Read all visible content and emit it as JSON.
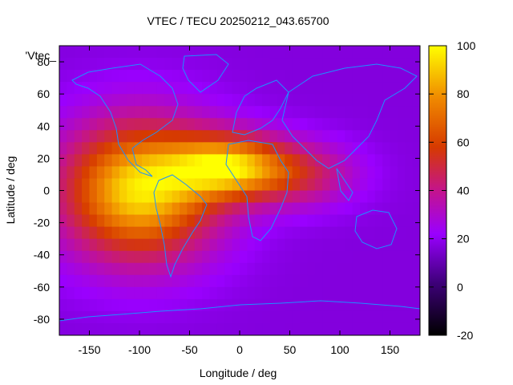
{
  "chart_data": {
    "type": "heatmap",
    "title": "VTEC / TECU 20250212_043.65700",
    "xlabel": "Longitude / deg",
    "ylabel": "Latitude / deg",
    "key_label": "'Vtec_",
    "xlim": [
      -180,
      180
    ],
    "ylim": [
      -90,
      90
    ],
    "x_ticks": [
      -150,
      -100,
      -50,
      0,
      50,
      100,
      150
    ],
    "y_ticks": [
      -80,
      -60,
      -40,
      -20,
      0,
      20,
      40,
      60,
      80
    ],
    "colorbar": {
      "range": [
        -20,
        100
      ],
      "ticks": [
        -20,
        0,
        20,
        40,
        60,
        80,
        100
      ],
      "palette": "black-purple-red-orange-yellow"
    },
    "peak_region": {
      "longitude": -100,
      "latitude": 0,
      "value": 95
    },
    "secondary_peak_region": {
      "longitude": -10,
      "latitude": 15,
      "value": 90
    },
    "background_value": 15,
    "coastline_color": "#1e90ff"
  }
}
